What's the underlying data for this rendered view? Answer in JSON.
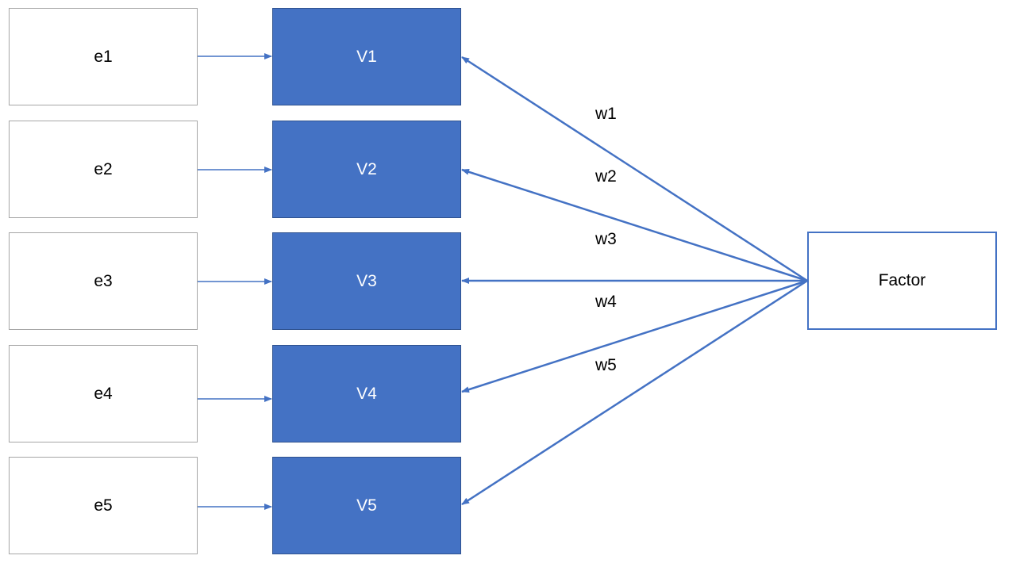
{
  "diagram": {
    "errors": [
      "e1",
      "e2",
      "e3",
      "e4",
      "e5"
    ],
    "variables": [
      "V1",
      "V2",
      "V3",
      "V4",
      "V5"
    ],
    "weights": [
      "w1",
      "w2",
      "w3",
      "w4",
      "w5"
    ],
    "factor": "Factor",
    "colors": {
      "variable_fill": "#4472c4",
      "variable_border": "#2f528f",
      "error_border": "#a6a6a6",
      "factor_border": "#4472c4",
      "arrow": "#4472c4"
    }
  }
}
